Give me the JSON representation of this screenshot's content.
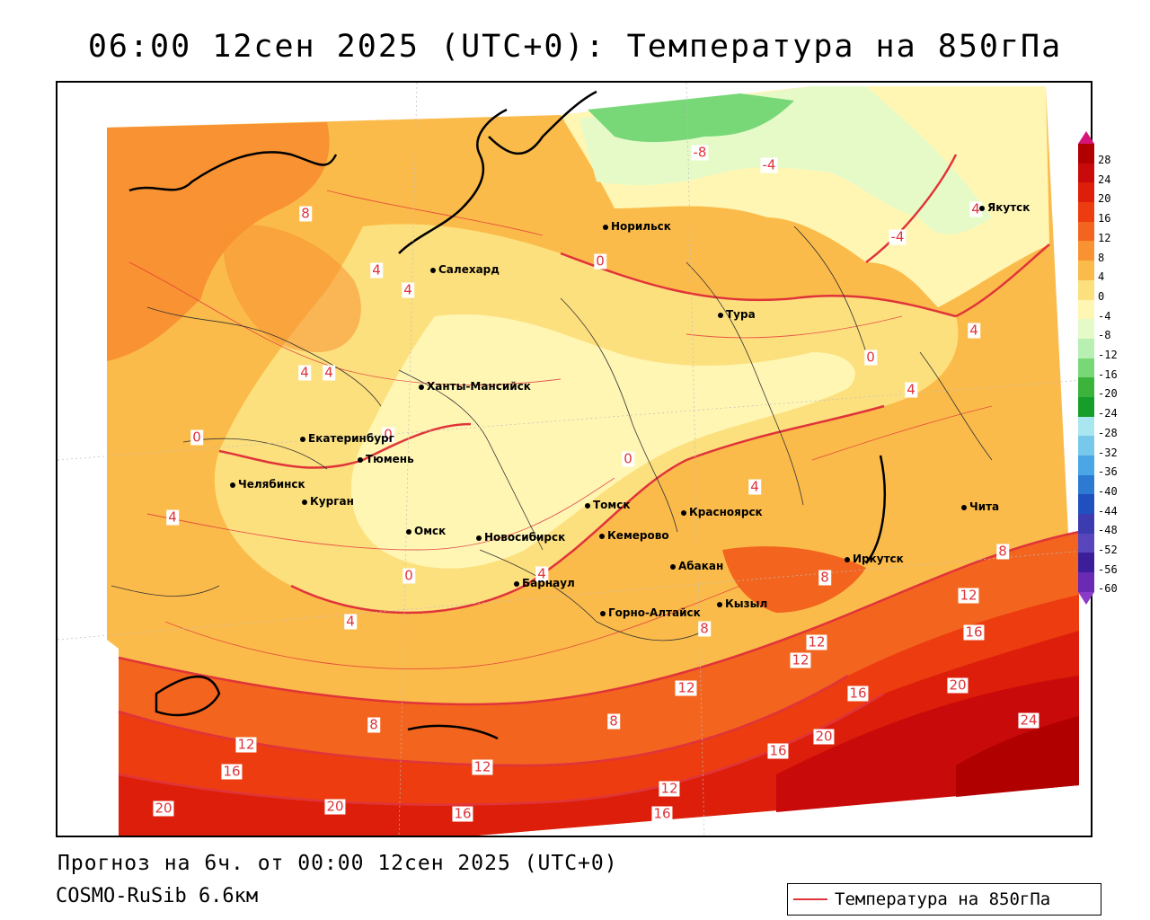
{
  "title": "06:00 12сен 2025 (UTC+0): Температура на 850гПа",
  "footer": {
    "forecast": "Прогноз на 6ч. от 00:00 12сен 2025 (UTC+0)",
    "model": "COSMO-RuSib 6.6км"
  },
  "legend": {
    "label": "Температура на 850гПа",
    "color": "#e0343a"
  },
  "colorbar": {
    "labels": [
      "28",
      "24",
      "20",
      "16",
      "12",
      "8",
      "4",
      "0",
      "-4",
      "-8",
      "-12",
      "-16",
      "-20",
      "-24",
      "-28",
      "-32",
      "-36",
      "-40",
      "-44",
      "-48",
      "-52",
      "-56",
      "-60"
    ],
    "colors": [
      "#b00000",
      "#c80a0a",
      "#dc1e0a",
      "#ec3c10",
      "#f3641e",
      "#f89232",
      "#fbbb4a",
      "#fde07e",
      "#fff6b4",
      "#e6fac8",
      "#b8f0b4",
      "#78d878",
      "#3cb43c",
      "#169e2a",
      "#aae6f0",
      "#78c8ec",
      "#4aa6e4",
      "#2c7ad2",
      "#2050c0",
      "#3c3cb0",
      "#5a46bc",
      "#3c1e9a",
      "#6a2ab4"
    ]
  },
  "cities": [
    {
      "name": "Якутск"
    },
    {
      "name": "Норильск"
    },
    {
      "name": "Салехард"
    },
    {
      "name": "Тура"
    },
    {
      "name": "Ханты-Мансийск"
    },
    {
      "name": "Екатеринбург"
    },
    {
      "name": "Тюмень"
    },
    {
      "name": "Челябинск"
    },
    {
      "name": "Курган"
    },
    {
      "name": "Омск"
    },
    {
      "name": "Новосибирск"
    },
    {
      "name": "Томск"
    },
    {
      "name": "Красноярск"
    },
    {
      "name": "Кемерово"
    },
    {
      "name": "Абакан"
    },
    {
      "name": "Барнаул"
    },
    {
      "name": "Горно-Алтайск"
    },
    {
      "name": "Кызыл"
    },
    {
      "name": "Иркутск"
    },
    {
      "name": "Чита"
    }
  ],
  "contour_labels": [
    "-8",
    "-4",
    "-4",
    "8",
    "4",
    "4",
    "4",
    "4",
    "0",
    "0",
    "0",
    "0",
    "0",
    "4",
    "4",
    "4",
    "0",
    "4",
    "4",
    "4",
    "4",
    "8",
    "8",
    "8",
    "12",
    "12",
    "16",
    "12",
    "12",
    "16",
    "20",
    "20",
    "24",
    "8",
    "12",
    "16",
    "20",
    "8",
    "12",
    "16",
    "16",
    "12",
    "16",
    "20",
    "12",
    "4"
  ]
}
